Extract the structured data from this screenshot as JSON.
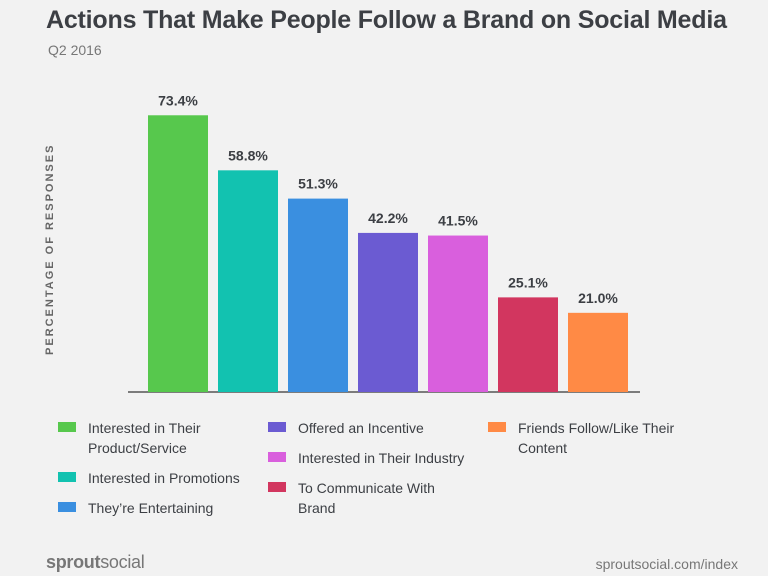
{
  "header": {
    "title": "Actions That Make People Follow a Brand on Social Media",
    "subtitle": "Q2 2016"
  },
  "chart_data": {
    "type": "bar",
    "title": "Actions That Make People Follow a Brand on Social Media",
    "subtitle": "Q2 2016",
    "xlabel": "",
    "ylabel": "PERCENTAGE OF RESPONSES",
    "ylim": [
      0,
      80
    ],
    "grid": false,
    "legend_position": "bottom",
    "categories": [
      "Interested in Their Product/Service",
      "Interested in Promotions",
      "They’re Entertaining",
      "Offered an Incentive",
      "Interested in Their Industry",
      "To Communicate With Brand",
      "Friends Follow/Like Their Content"
    ],
    "values": [
      73.4,
      58.8,
      51.3,
      42.2,
      41.5,
      25.1,
      21.0
    ],
    "value_labels": [
      "73.4%",
      "58.8%",
      "51.3%",
      "42.2%",
      "41.5%",
      "25.1%",
      "21.0%"
    ],
    "colors": [
      "#57c84d",
      "#12c2b0",
      "#3a8fe0",
      "#6b5bd2",
      "#d95fdd",
      "#d2365f",
      "#ff8a45"
    ]
  },
  "legend": {
    "items": [
      {
        "line1": "Interested in Their",
        "line2": "Product/Service",
        "color": "#57c84d"
      },
      {
        "line1": "Interested in Promotions",
        "line2": "",
        "color": "#12c2b0"
      },
      {
        "line1": "They’re Entertaining",
        "line2": "",
        "color": "#3a8fe0"
      },
      {
        "line1": "Offered an Incentive",
        "line2": "",
        "color": "#6b5bd2"
      },
      {
        "line1": "Interested in Their Industry",
        "line2": "",
        "color": "#d95fdd"
      },
      {
        "line1": "To Communicate With",
        "line2": "Brand",
        "color": "#d2365f"
      },
      {
        "line1": "Friends Follow/Like Their",
        "line2": "Content",
        "color": "#ff8a45"
      }
    ]
  },
  "footer": {
    "brand_part1": "sprout",
    "brand_part2": "social",
    "source": "sproutsocial.com/index"
  }
}
